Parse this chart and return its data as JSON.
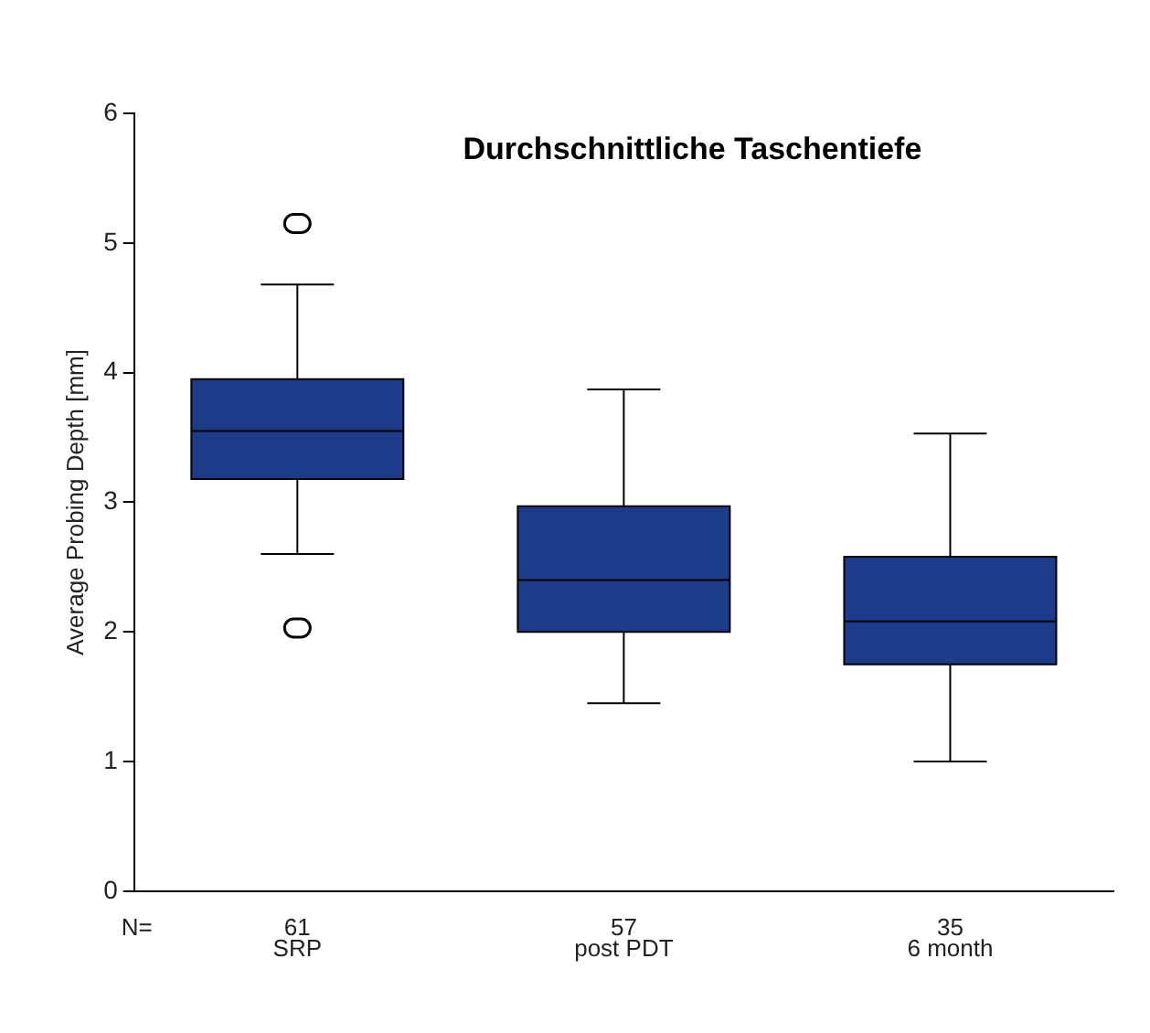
{
  "chart_data": {
    "type": "box",
    "title": "Durchschnittliche Taschentiefe",
    "ylabel": "Average Probing Depth [mm]",
    "categories": [
      "SRP",
      "post PDT",
      "6 month"
    ],
    "color": "#1c3c8a",
    "boxes": [
      {
        "low": 2.6,
        "q1": 3.18,
        "median": 3.55,
        "q3": 3.95,
        "high": 4.68,
        "outliers": [
          5.15,
          2.03
        ]
      },
      {
        "low": 1.45,
        "q1": 2.0,
        "median": 2.4,
        "q3": 2.97,
        "high": 3.87
      },
      {
        "low": 1.0,
        "q1": 1.75,
        "median": 2.08,
        "q3": 2.58,
        "high": 3.53
      }
    ],
    "ylim": [
      0,
      6
    ],
    "yticks": [
      0,
      1,
      2,
      3,
      4,
      5,
      6
    ],
    "grid": false,
    "legend": false,
    "annotations": [
      "N=",
      "61",
      "57",
      "35"
    ]
  }
}
